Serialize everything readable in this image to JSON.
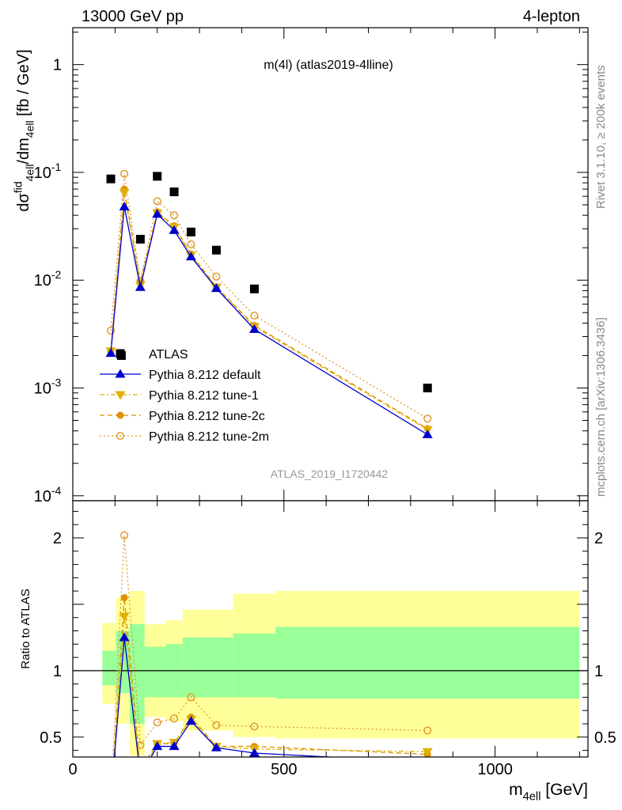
{
  "header": {
    "left": "13000 GeV pp",
    "right": "4-lepton"
  },
  "side_labels": {
    "top": "Rivet 3.1.10, ≥ 200k events",
    "bottom": "mcplots.cern.ch [arXiv:1306.3436]"
  },
  "watermark": "ATLAS_2019_I1720442",
  "main_title": "m(4l) (atlas2019-4lline)",
  "xlabel": "m_{4ell} [GeV]",
  "ylabel": "dσ^{fid}_{4ell}/dm_{4ell} [fb / GeV]",
  "ratio_ylabel": "Ratio to ATLAS",
  "colors": {
    "data": "#000000",
    "default": "#0000cc",
    "tune1": "#e0b000",
    "tune2c": "#e09000",
    "tune2m": "#e09a30",
    "band_inner": "#99ff99",
    "band_outer": "#ffff99"
  },
  "chart_data": [
    {
      "type": "scatter",
      "name": "main",
      "yscale": "log",
      "xlim": [
        0,
        1220
      ],
      "ylim": [
        9e-05,
        2.2
      ],
      "ytick_values": [
        0.0001,
        0.001,
        0.01,
        0.1,
        1
      ],
      "ytick_labels": [
        [
          "10",
          "-4"
        ],
        [
          "10",
          "-3"
        ],
        [
          "10",
          "-2"
        ],
        [
          "10",
          "-1"
        ],
        [
          "1",
          ""
        ]
      ],
      "legend_position": "lower-left",
      "legend": [
        {
          "key": "data",
          "label": "ATLAS"
        },
        {
          "key": "default",
          "label": "Pythia 8.212 default"
        },
        {
          "key": "tune1",
          "label": "Pythia 8.212 tune-1"
        },
        {
          "key": "tune2c",
          "label": "Pythia 8.212 tune-2c"
        },
        {
          "key": "tune2m",
          "label": "Pythia 8.212 tune-2m"
        }
      ],
      "data": {
        "x": [
          90,
          115,
          160,
          200,
          240,
          280,
          340,
          430,
          840
        ],
        "y": [
          0.087,
          0.002,
          0.024,
          0.092,
          0.066,
          0.028,
          0.019,
          0.0083,
          0.001
        ]
      },
      "series": [
        {
          "key": "default",
          "style": "solid",
          "marker": "triangle-up",
          "x": [
            90,
            122,
            160,
            200,
            240,
            280,
            340,
            430,
            840
          ],
          "y": [
            0.0021,
            0.048,
            0.0086,
            0.041,
            0.029,
            0.0165,
            0.0084,
            0.0035,
            0.00037
          ]
        },
        {
          "key": "tune1",
          "style": "dashdot",
          "marker": "triangle-down",
          "x": [
            90,
            122,
            160,
            200,
            240,
            280,
            340,
            430,
            840
          ],
          "y": [
            0.0022,
            0.065,
            0.009,
            0.042,
            0.031,
            0.017,
            0.0086,
            0.0037,
            0.00041
          ]
        },
        {
          "key": "tune2c",
          "style": "dashed",
          "marker": "circle-filled",
          "x": [
            90,
            122,
            160,
            200,
            240,
            280,
            340,
            430,
            840
          ],
          "y": [
            0.0022,
            0.07,
            0.0095,
            0.043,
            0.032,
            0.0175,
            0.0087,
            0.0038,
            0.00042
          ]
        },
        {
          "key": "tune2m",
          "style": "dotted",
          "marker": "circle-open",
          "x": [
            90,
            122,
            160,
            200,
            240,
            280,
            340,
            430,
            840
          ],
          "y": [
            0.0034,
            0.097,
            0.0098,
            0.054,
            0.04,
            0.0215,
            0.0108,
            0.0047,
            0.00052
          ]
        }
      ]
    },
    {
      "type": "line",
      "name": "ratio",
      "xlim": [
        0,
        1220
      ],
      "ylim": [
        0.35,
        2.28
      ],
      "ytick_values": [
        0.5,
        1,
        2
      ],
      "ytick_labels": [
        "0.5",
        "1",
        "2"
      ],
      "xtick_values": [
        0,
        500,
        1000
      ],
      "xtick_labels": [
        "0",
        "500",
        "1000"
      ],
      "bands": [
        {
          "x0": 70,
          "x1": 102,
          "inner": [
            0.89,
            1.15
          ],
          "outer": [
            0.75,
            1.36
          ]
        },
        {
          "x0": 102,
          "x1": 135,
          "inner": [
            0.83,
            1.3
          ],
          "outer": [
            0.6,
            1.55
          ]
        },
        {
          "x0": 135,
          "x1": 170,
          "inner": [
            0.6,
            1.35
          ],
          "outer": [
            0.36,
            1.6
          ]
        },
        {
          "x0": 170,
          "x1": 220,
          "inner": [
            0.8,
            1.18
          ],
          "outer": [
            0.65,
            1.35
          ]
        },
        {
          "x0": 220,
          "x1": 260,
          "inner": [
            0.8,
            1.2
          ],
          "outer": [
            0.62,
            1.38
          ]
        },
        {
          "x0": 260,
          "x1": 380,
          "inner": [
            0.8,
            1.25
          ],
          "outer": [
            0.55,
            1.46
          ]
        },
        {
          "x0": 380,
          "x1": 480,
          "inner": [
            0.8,
            1.28
          ],
          "outer": [
            0.5,
            1.58
          ]
        },
        {
          "x0": 480,
          "x1": 1200,
          "inner": [
            0.79,
            1.33
          ],
          "outer": [
            0.49,
            1.6
          ]
        }
      ],
      "series": [
        {
          "key": "default",
          "style": "solid",
          "marker": "triangle-up",
          "x": [
            90,
            122,
            160,
            200,
            240,
            280,
            340,
            430,
            840
          ],
          "y": [
            0.024,
            1.25,
            0.21,
            0.43,
            0.43,
            0.62,
            0.42,
            0.38,
            0.31
          ]
        },
        {
          "key": "tune1",
          "style": "dashdot",
          "marker": "triangle-down",
          "x": [
            90,
            122,
            160,
            200,
            240,
            280,
            340,
            430,
            840
          ],
          "y": [
            0.025,
            1.41,
            0.22,
            0.45,
            0.46,
            0.63,
            0.43,
            0.41,
            0.39
          ]
        },
        {
          "key": "tune2c",
          "style": "dashed",
          "marker": "circle-filled",
          "x": [
            90,
            122,
            160,
            200,
            240,
            280,
            340,
            430,
            840
          ],
          "y": [
            0.025,
            1.55,
            0.26,
            0.45,
            0.45,
            0.65,
            0.43,
            0.43,
            0.37
          ]
        },
        {
          "key": "tune2m",
          "style": "dotted",
          "marker": "circle-open",
          "x": [
            90,
            122,
            160,
            200,
            240,
            280,
            340,
            430,
            840
          ],
          "y": [
            0.039,
            2.02,
            0.44,
            0.61,
            0.64,
            0.8,
            0.59,
            0.58,
            0.55
          ]
        }
      ]
    }
  ]
}
